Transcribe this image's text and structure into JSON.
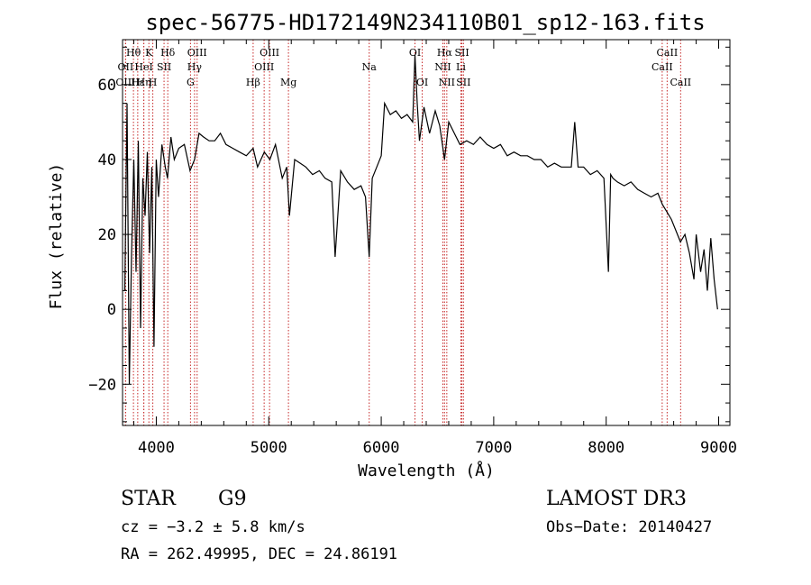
{
  "chart_data": {
    "type": "line",
    "title": "spec-56775-HD172149N234110B01_sp12-163.fits",
    "xlabel": "Wavelength (Å)",
    "ylabel": "Flux (relative)",
    "xlim": [
      3700,
      9100
    ],
    "ylim": [
      -31,
      72
    ],
    "xticks": [
      4000,
      5000,
      6000,
      7000,
      8000,
      9000
    ],
    "yticks": [
      -20,
      0,
      20,
      40,
      60
    ],
    "series": [
      {
        "name": "spectrum",
        "x": [
          3720,
          3740,
          3760,
          3780,
          3800,
          3820,
          3840,
          3860,
          3880,
          3900,
          3920,
          3940,
          3960,
          3980,
          4000,
          4020,
          4050,
          4080,
          4100,
          4130,
          4160,
          4200,
          4250,
          4300,
          4340,
          4380,
          4420,
          4470,
          4520,
          4570,
          4620,
          4680,
          4740,
          4800,
          4861,
          4900,
          4960,
          5010,
          5060,
          5120,
          5160,
          5184,
          5230,
          5280,
          5330,
          5390,
          5450,
          5500,
          5560,
          5590,
          5640,
          5700,
          5760,
          5820,
          5860,
          5893,
          5920,
          5960,
          6000,
          6030,
          6080,
          6130,
          6180,
          6230,
          6280,
          6300,
          6320,
          6340,
          6380,
          6430,
          6480,
          6520,
          6563,
          6600,
          6650,
          6700,
          6760,
          6820,
          6880,
          6940,
          7000,
          7060,
          7120,
          7180,
          7240,
          7300,
          7360,
          7420,
          7480,
          7540,
          7600,
          7650,
          7690,
          7720,
          7750,
          7800,
          7860,
          7920,
          7980,
          8020,
          8040,
          8060,
          8100,
          8160,
          8220,
          8280,
          8340,
          8400,
          8460,
          8500,
          8540,
          8580,
          8620,
          8660,
          8700,
          8740,
          8780,
          8800,
          8840,
          8870,
          8900,
          8930,
          8960,
          8990
        ],
        "y": [
          5,
          55,
          -20,
          15,
          40,
          10,
          45,
          -5,
          35,
          25,
          42,
          15,
          38,
          -10,
          40,
          30,
          44,
          38,
          35,
          46,
          40,
          43,
          44,
          37,
          40,
          47,
          46,
          45,
          45,
          47,
          44,
          43,
          42,
          41,
          43,
          38,
          42,
          40,
          44,
          35,
          38,
          25,
          40,
          39,
          38,
          36,
          37,
          35,
          34,
          14,
          37,
          34,
          32,
          33,
          30,
          14,
          35,
          38,
          41,
          55,
          52,
          53,
          51,
          52,
          50,
          68,
          55,
          45,
          54,
          47,
          53,
          49,
          40,
          50,
          47,
          44,
          45,
          44,
          46,
          44,
          43,
          44,
          41,
          42,
          41,
          41,
          40,
          40,
          38,
          39,
          38,
          38,
          38,
          50,
          38,
          38,
          36,
          37,
          35,
          10,
          36,
          35,
          34,
          33,
          34,
          32,
          31,
          30,
          31,
          28,
          26,
          24,
          21,
          18,
          20,
          15,
          8,
          20,
          10,
          16,
          5,
          19,
          8,
          0
        ]
      }
    ],
    "lines": [
      {
        "name": "Hθ",
        "x": 3797,
        "row": 1
      },
      {
        "name": "OII",
        "x": 3727,
        "row": 2
      },
      {
        "name": "OIII",
        "x": 3727,
        "row": 3
      },
      {
        "name": "Hε",
        "x": 3835,
        "row": 3
      },
      {
        "name": "HeI",
        "x": 3889,
        "row": 2
      },
      {
        "name": "K",
        "x": 3934,
        "row": 1
      },
      {
        "name": "Hη",
        "x": 3889,
        "row": 3
      },
      {
        "name": "SII",
        "x": 4069,
        "row": 2
      },
      {
        "name": "H",
        "x": 3969,
        "row": 3
      },
      {
        "name": "Hδ",
        "x": 4102,
        "row": 1
      },
      {
        "name": "OIII",
        "x": 4363,
        "row": 1
      },
      {
        "name": "Hγ",
        "x": 4340,
        "row": 2
      },
      {
        "name": "G",
        "x": 4304,
        "row": 3
      },
      {
        "name": "Hβ",
        "x": 4861,
        "row": 3
      },
      {
        "name": "OIII",
        "x": 5007,
        "row": 1
      },
      {
        "name": "OIII",
        "x": 4959,
        "row": 2
      },
      {
        "name": "Mg",
        "x": 5175,
        "row": 3
      },
      {
        "name": "Na",
        "x": 5893,
        "row": 2
      },
      {
        "name": "OI",
        "x": 6300,
        "row": 1
      },
      {
        "name": "OI",
        "x": 6364,
        "row": 3
      },
      {
        "name": "Hα",
        "x": 6563,
        "row": 1
      },
      {
        "name": "NII",
        "x": 6548,
        "row": 2
      },
      {
        "name": "NII",
        "x": 6583,
        "row": 3
      },
      {
        "name": "SII",
        "x": 6717,
        "row": 1
      },
      {
        "name": "Li",
        "x": 6708,
        "row": 2
      },
      {
        "name": "SII",
        "x": 6731,
        "row": 3
      },
      {
        "name": "CaII",
        "x": 8542,
        "row": 1
      },
      {
        "name": "CaII",
        "x": 8498,
        "row": 2
      },
      {
        "name": "CaII",
        "x": 8662,
        "row": 3
      }
    ]
  },
  "info": {
    "class": "STAR",
    "subclass": "G9",
    "survey": "LAMOST DR3",
    "cz": "cz = −3.2 ± 5.8 km/s",
    "obs_date": "Obs−Date: 20140427",
    "radec": "RA = 262.49995, DEC =  24.86191"
  },
  "colors": {
    "line_marker": "#c62828",
    "spectrum": "#000000",
    "axis": "#000000"
  }
}
